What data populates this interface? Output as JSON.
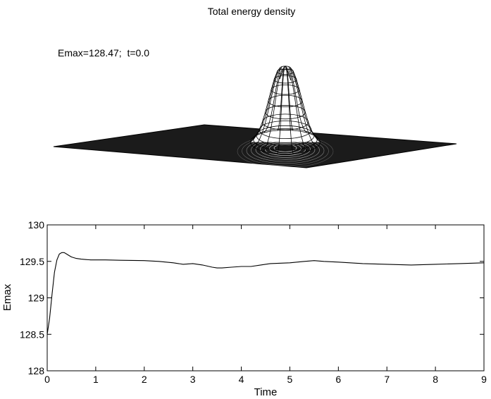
{
  "chart_data": [
    {
      "type": "surface",
      "title": "Total energy density",
      "annotation": "Emax=128.47;  t=0.0",
      "peak_value": 128.47,
      "time": 0.0,
      "colors": {
        "mesh_line": "#000000",
        "surface_fill": "#ffffff",
        "dense_mesh": "#1a1a1a"
      }
    },
    {
      "type": "line",
      "title": "",
      "xlabel": "Time",
      "ylabel": "Emax",
      "xlim": [
        0,
        9
      ],
      "ylim": [
        128,
        130
      ],
      "xticks": [
        "0",
        "1",
        "2",
        "3",
        "4",
        "5",
        "6",
        "7",
        "8",
        "9"
      ],
      "yticks": [
        "128",
        "128.5",
        "129",
        "129.5",
        "130"
      ],
      "grid": false,
      "series": [
        {
          "color": "#000000",
          "x": [
            0,
            0.05,
            0.1,
            0.15,
            0.2,
            0.25,
            0.3,
            0.35,
            0.4,
            0.45,
            0.5,
            0.6,
            0.7,
            0.8,
            0.9,
            1.0,
            1.2,
            1.5,
            2.0,
            2.3,
            2.6,
            2.8,
            3.0,
            3.2,
            3.4,
            3.5,
            3.6,
            3.8,
            4.0,
            4.2,
            4.4,
            4.6,
            5.0,
            5.3,
            5.5,
            5.7,
            6.0,
            6.5,
            7.0,
            7.5,
            8.0,
            8.5,
            9.0
          ],
          "values": [
            128.5,
            128.72,
            129.05,
            129.35,
            129.52,
            129.6,
            129.62,
            129.62,
            129.6,
            129.58,
            129.56,
            129.54,
            129.53,
            129.525,
            129.52,
            129.52,
            129.52,
            129.515,
            129.51,
            129.5,
            129.48,
            129.46,
            129.47,
            129.45,
            129.42,
            129.41,
            129.41,
            129.42,
            129.43,
            129.43,
            129.45,
            129.47,
            129.48,
            129.5,
            129.51,
            129.5,
            129.49,
            129.47,
            129.46,
            129.45,
            129.46,
            129.47,
            129.48
          ]
        }
      ]
    }
  ]
}
